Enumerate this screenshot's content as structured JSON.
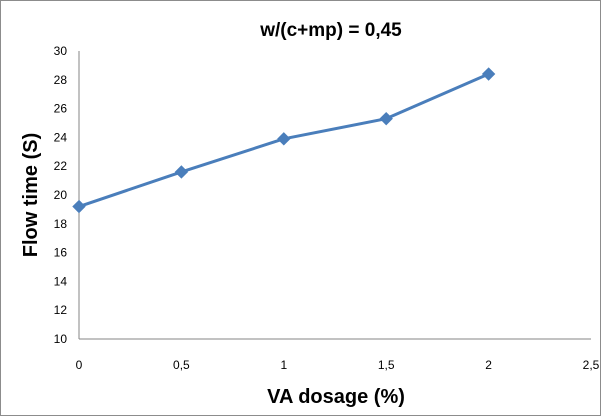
{
  "chart_data": {
    "type": "line",
    "title": "w/(c+mp) = 0,45",
    "xlabel": "VA dosage (%)",
    "ylabel": "Flow time (S)",
    "xlim": [
      0,
      2.5
    ],
    "ylim": [
      10,
      30
    ],
    "x_ticks": [
      "0",
      "0,5",
      "1",
      "1,5",
      "2",
      "2,5"
    ],
    "y_ticks": [
      "10",
      "12",
      "14",
      "16",
      "18",
      "20",
      "22",
      "24",
      "26",
      "28",
      "30"
    ],
    "grid": false,
    "legend": "none",
    "line_color": "#4a7ebb",
    "marker": "diamond",
    "series": [
      {
        "x": [
          0,
          0.5,
          1,
          1.5,
          2
        ],
        "values": [
          19.2,
          21.6,
          23.9,
          25.3,
          28.4
        ]
      }
    ]
  }
}
